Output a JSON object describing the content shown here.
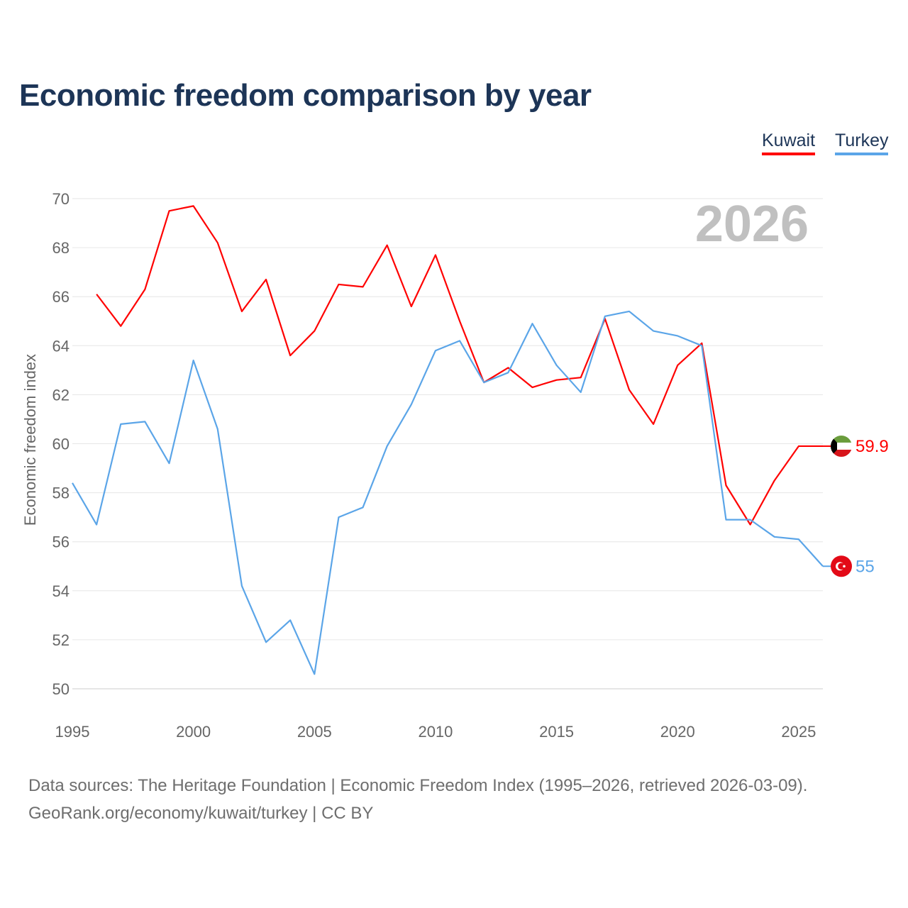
{
  "title": "Economic freedom comparison by year",
  "footer": {
    "line1": "Data sources: The Heritage Foundation | Economic Freedom Index (1995–2026, retrieved 2026-03-09).",
    "line2": "GeoRank.org/economy/kuwait/turkey | CC BY"
  },
  "chart_data": {
    "type": "line",
    "title": "Economic freedom comparison by year",
    "xlabel": "",
    "ylabel": "Economic freedom index",
    "year_label": "2026",
    "xlim": [
      1995,
      2026
    ],
    "ylim": [
      50,
      70
    ],
    "xticks": [
      "1995",
      "2000",
      "2005",
      "2010",
      "2015",
      "2020",
      "2025"
    ],
    "yticks": [
      "50",
      "52",
      "54",
      "56",
      "58",
      "60",
      "62",
      "64",
      "66",
      "68",
      "70"
    ],
    "grid": true,
    "legend_placement": "top-right",
    "series": [
      {
        "name": "Kuwait",
        "color": "#ff0000",
        "end_label": "59.9",
        "x": [
          1996,
          1997,
          1998,
          1999,
          2000,
          2001,
          2002,
          2003,
          2004,
          2005,
          2006,
          2007,
          2008,
          2009,
          2010,
          2011,
          2012,
          2013,
          2014,
          2015,
          2016,
          2017,
          2018,
          2019,
          2020,
          2021,
          2022,
          2023,
          2024,
          2025,
          2026
        ],
        "values": [
          66.1,
          64.8,
          66.3,
          69.5,
          69.7,
          68.2,
          65.4,
          66.7,
          63.6,
          64.6,
          66.5,
          66.4,
          68.1,
          65.6,
          67.7,
          65.0,
          62.5,
          63.1,
          62.3,
          62.6,
          62.7,
          65.1,
          62.2,
          60.8,
          63.2,
          64.1,
          58.3,
          56.7,
          58.5,
          59.9,
          59.9
        ]
      },
      {
        "name": "Turkey",
        "color": "#5ba5e8",
        "end_label": "55",
        "x": [
          1995,
          1996,
          1997,
          1998,
          1999,
          2000,
          2001,
          2002,
          2003,
          2004,
          2005,
          2006,
          2007,
          2008,
          2009,
          2010,
          2011,
          2012,
          2013,
          2014,
          2015,
          2016,
          2017,
          2018,
          2019,
          2020,
          2021,
          2022,
          2023,
          2024,
          2025,
          2026
        ],
        "values": [
          58.4,
          56.7,
          60.8,
          60.9,
          59.2,
          63.4,
          60.6,
          54.2,
          51.9,
          52.8,
          50.6,
          57.0,
          57.4,
          59.9,
          61.6,
          63.8,
          64.2,
          62.5,
          62.9,
          64.9,
          63.2,
          62.1,
          65.2,
          65.4,
          64.6,
          64.4,
          64.0,
          56.9,
          56.9,
          56.2,
          56.1,
          55.0
        ]
      }
    ]
  }
}
